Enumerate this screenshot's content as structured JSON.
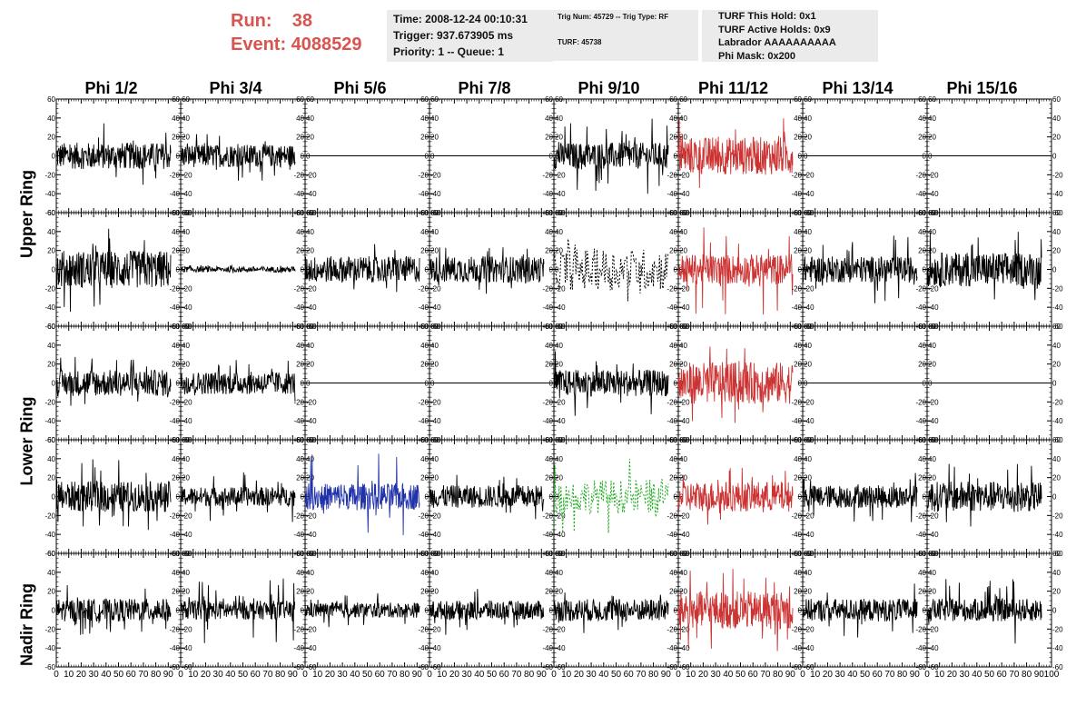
{
  "header": {
    "run_line": "Run:    38",
    "event_line": "Event: 4088529"
  },
  "info_box_1": {
    "time": "Time: 2008-12-24 00:10:31",
    "trigger": "Trigger: 937.673905 ms",
    "priority": "Priority: 1 -- Queue: 1"
  },
  "info_box_2": {
    "trig": "Trig Num: 45729 -- Trig Type: RF",
    "turf": "TURF: 45738"
  },
  "info_box_3": {
    "hold": "TURF This Hold: 0x1",
    "active": "TURF Active Holds: 0x9",
    "labrador": "Labrador AAAAAAAAAA",
    "phimask": "Phi Mask: 0x200"
  },
  "columns": [
    "Phi 1/2",
    "Phi 3/4",
    "Phi 5/6",
    "Phi 7/8",
    "Phi 9/10",
    "Phi 11/12",
    "Phi 13/14",
    "Phi 15/16"
  ],
  "rings": [
    {
      "label": "Upper Ring",
      "rows": [
        0,
        1
      ]
    },
    {
      "label": "Lower Ring",
      "rows": [
        2,
        3
      ]
    },
    {
      "label": "Nadir Ring",
      "rows": [
        4
      ]
    }
  ],
  "colors": {
    "trace": "#000000",
    "red": "#cc3333",
    "blue": "#2233aa",
    "green": "#22aa22",
    "accent_text": "#d9534f",
    "box_bg": "#ebebeb"
  },
  "chart_data": {
    "type": "line",
    "layout": "grid 5 rows x 8 columns of waveform panels",
    "xlim": [
      0,
      100
    ],
    "ylim": [
      -60,
      60
    ],
    "y_ticks": [
      -60,
      -40,
      -20,
      0,
      20,
      40,
      60
    ],
    "x_ticks": [
      0,
      10,
      20,
      30,
      40,
      50,
      60,
      70,
      80,
      90,
      100
    ],
    "panels": [
      [
        {
          "color": "black",
          "amplitude": 14,
          "spikes": 40,
          "style": "solid"
        },
        {
          "color": "black",
          "amplitude": 12,
          "spikes": 30,
          "style": "solid"
        },
        {
          "color": "black",
          "amplitude": 0,
          "spikes": 0,
          "style": "flat"
        },
        {
          "color": "black",
          "amplitude": 0,
          "spikes": 0,
          "style": "flat"
        },
        {
          "color": "black",
          "amplitude": 14,
          "spikes": 45,
          "style": "solid"
        },
        {
          "color": "red",
          "amplitude": 20,
          "spikes": 48,
          "style": "solid"
        },
        {
          "color": "black",
          "amplitude": 0,
          "spikes": 0,
          "style": "flat"
        },
        {
          "color": "black",
          "amplitude": 0,
          "spikes": 0,
          "style": "flat"
        }
      ],
      [
        {
          "color": "black",
          "amplitude": 20,
          "spikes": 50,
          "style": "solid"
        },
        {
          "color": "black",
          "amplitude": 3,
          "spikes": 5,
          "style": "solid"
        },
        {
          "color": "black",
          "amplitude": 14,
          "spikes": 30,
          "style": "solid"
        },
        {
          "color": "black",
          "amplitude": 14,
          "spikes": 30,
          "style": "solid"
        },
        {
          "color": "black",
          "amplitude": 22,
          "spikes": 40,
          "style": "dashed"
        },
        {
          "color": "red",
          "amplitude": 16,
          "spikes": 55,
          "style": "solid"
        },
        {
          "color": "black",
          "amplitude": 14,
          "spikes": 40,
          "style": "solid"
        },
        {
          "color": "black",
          "amplitude": 18,
          "spikes": 45,
          "style": "solid"
        }
      ],
      [
        {
          "color": "black",
          "amplitude": 14,
          "spikes": 35,
          "style": "solid"
        },
        {
          "color": "black",
          "amplitude": 12,
          "spikes": 30,
          "style": "solid"
        },
        {
          "color": "black",
          "amplitude": 0,
          "spikes": 0,
          "style": "flat"
        },
        {
          "color": "black",
          "amplitude": 0,
          "spikes": 0,
          "style": "flat"
        },
        {
          "color": "black",
          "amplitude": 14,
          "spikes": 40,
          "style": "solid"
        },
        {
          "color": "red",
          "amplitude": 22,
          "spikes": 50,
          "style": "solid"
        },
        {
          "color": "black",
          "amplitude": 0,
          "spikes": 0,
          "style": "flat"
        },
        {
          "color": "black",
          "amplitude": 0,
          "spikes": 0,
          "style": "flat"
        }
      ],
      [
        {
          "color": "black",
          "amplitude": 16,
          "spikes": 45,
          "style": "solid"
        },
        {
          "color": "black",
          "amplitude": 10,
          "spikes": 30,
          "style": "solid"
        },
        {
          "color": "blue",
          "amplitude": 14,
          "spikes": 55,
          "style": "solid"
        },
        {
          "color": "black",
          "amplitude": 12,
          "spikes": 30,
          "style": "solid"
        },
        {
          "color": "green",
          "amplitude": 18,
          "spikes": 45,
          "style": "dashed"
        },
        {
          "color": "red",
          "amplitude": 16,
          "spikes": 35,
          "style": "solid"
        },
        {
          "color": "black",
          "amplitude": 12,
          "spikes": 30,
          "style": "solid"
        },
        {
          "color": "black",
          "amplitude": 16,
          "spikes": 40,
          "style": "solid"
        }
      ],
      [
        {
          "color": "black",
          "amplitude": 12,
          "spikes": 30,
          "style": "solid"
        },
        {
          "color": "black",
          "amplitude": 10,
          "spikes": 40,
          "style": "solid"
        },
        {
          "color": "black",
          "amplitude": 8,
          "spikes": 20,
          "style": "solid"
        },
        {
          "color": "black",
          "amplitude": 10,
          "spikes": 30,
          "style": "solid"
        },
        {
          "color": "black",
          "amplitude": 12,
          "spikes": 30,
          "style": "solid"
        },
        {
          "color": "red",
          "amplitude": 20,
          "spikes": 50,
          "style": "solid"
        },
        {
          "color": "black",
          "amplitude": 12,
          "spikes": 35,
          "style": "solid"
        },
        {
          "color": "black",
          "amplitude": 12,
          "spikes": 40,
          "style": "solid"
        }
      ]
    ]
  }
}
